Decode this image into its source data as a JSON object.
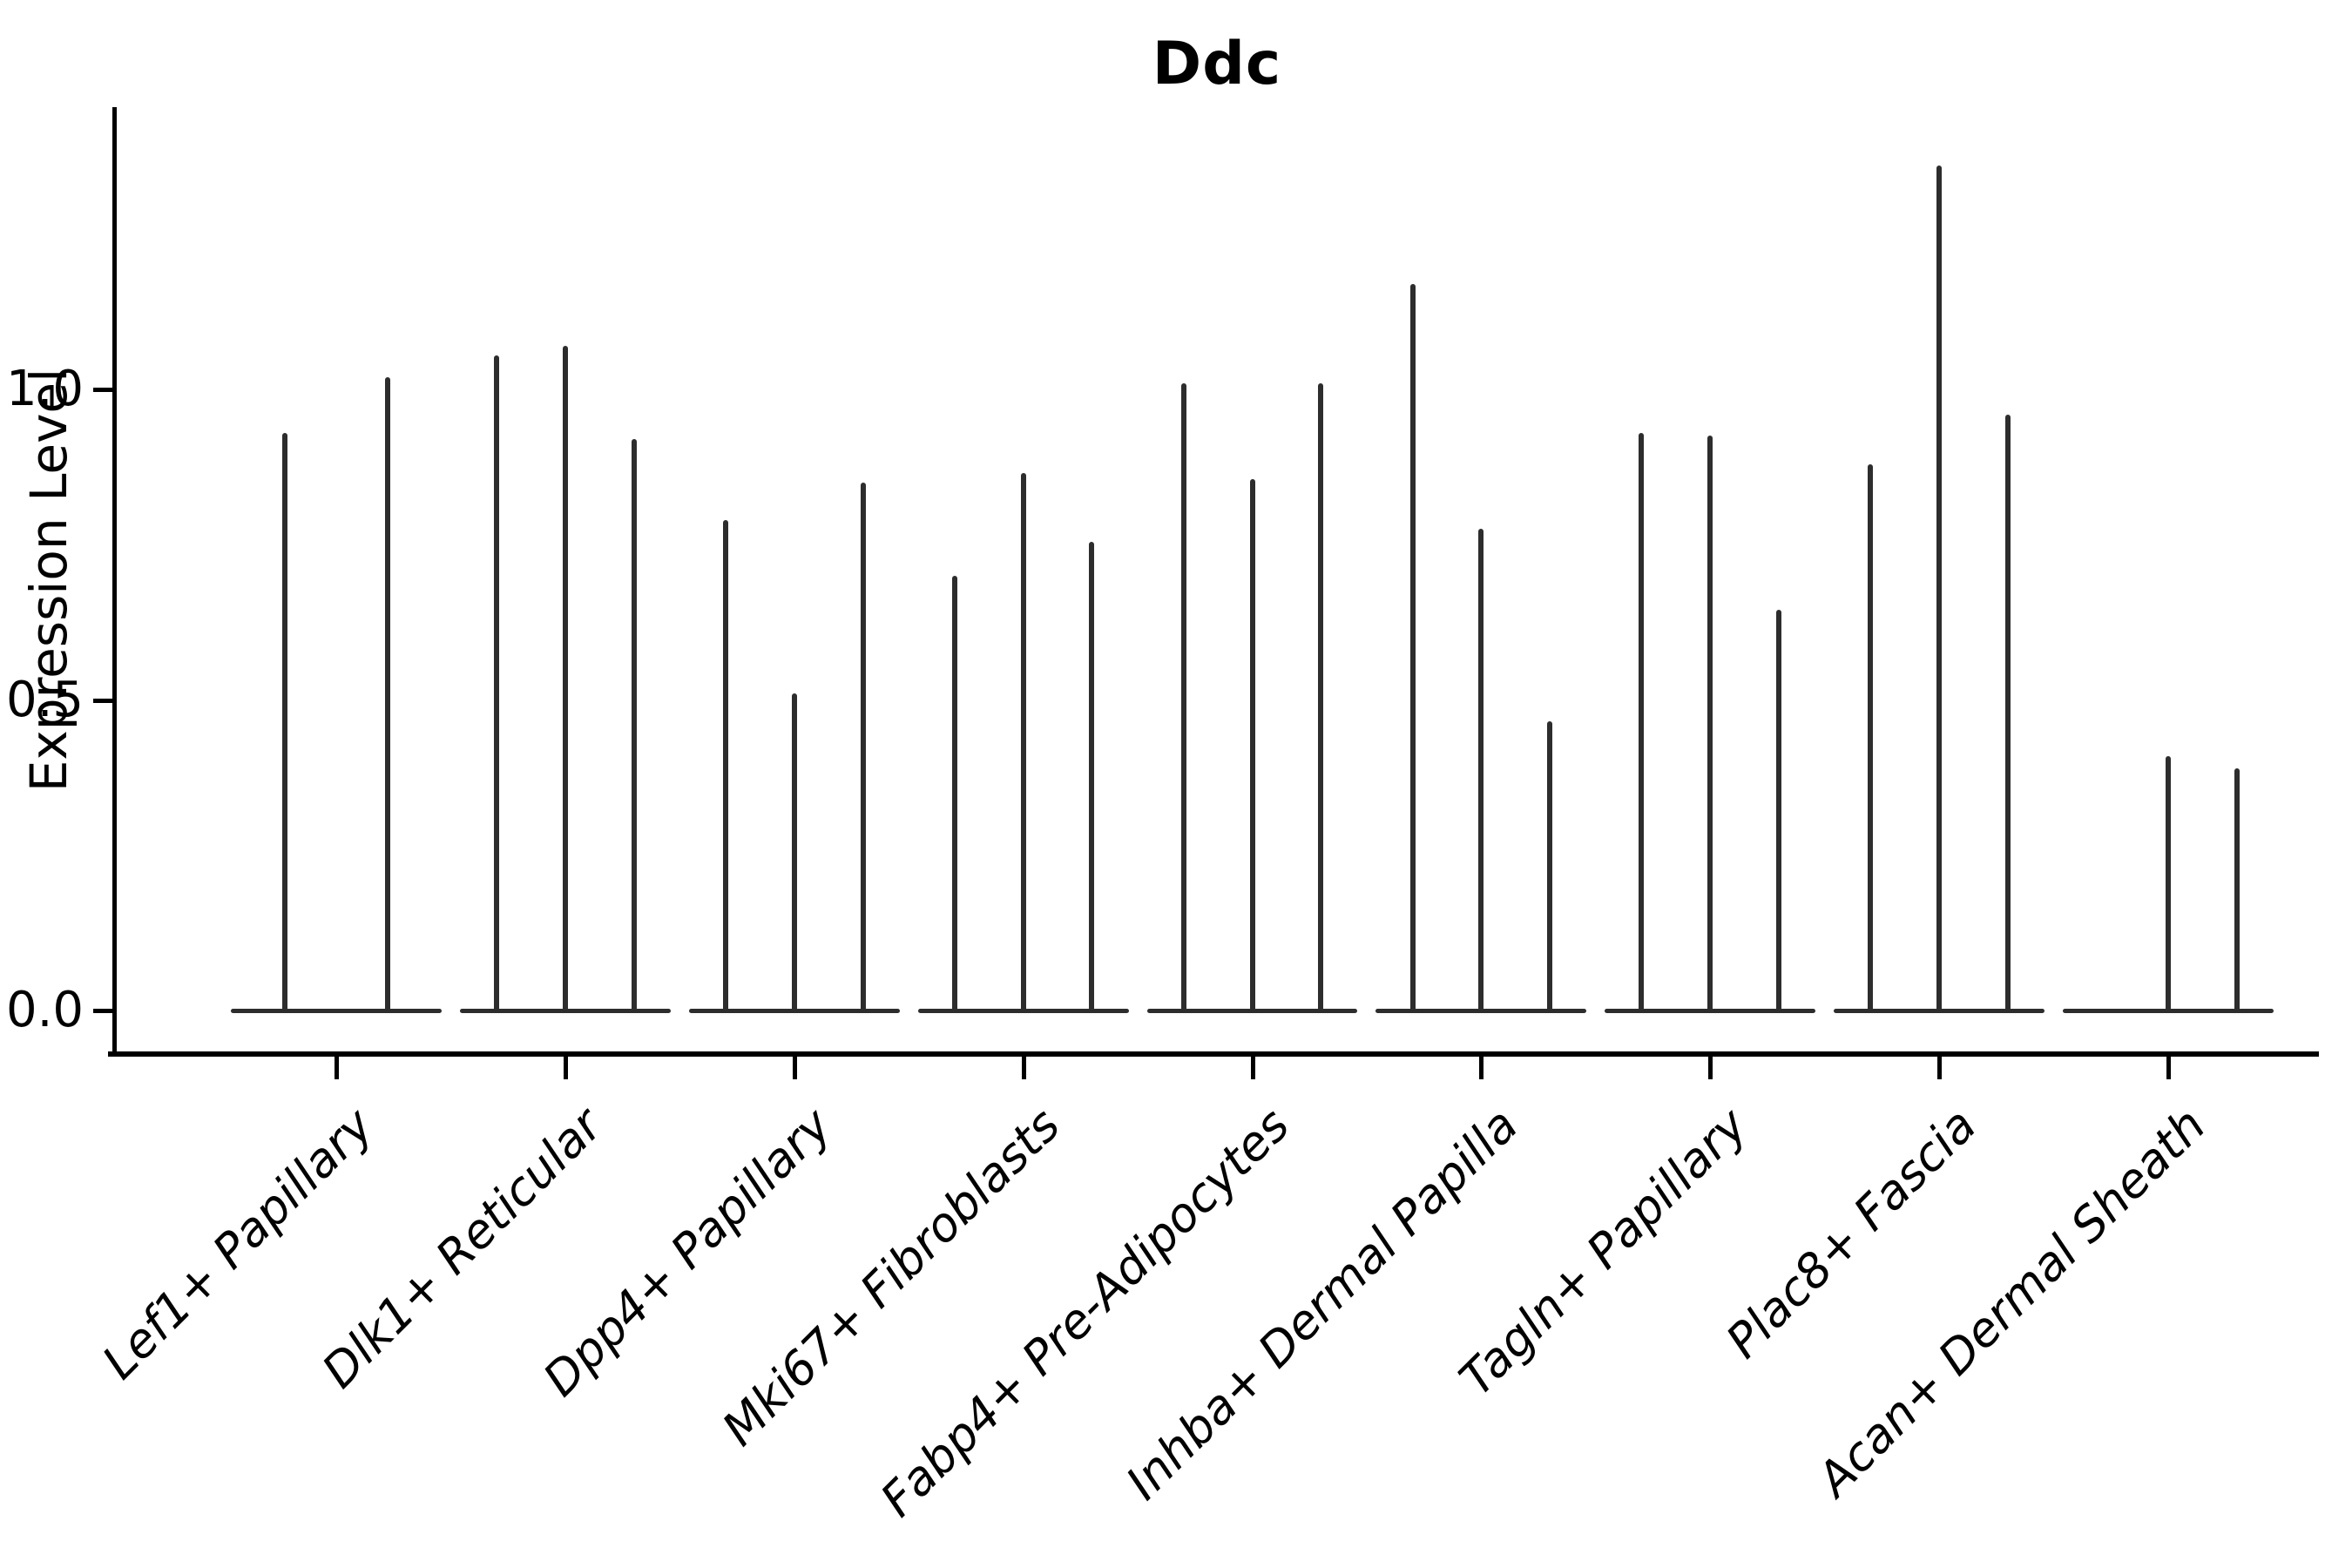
{
  "figure": {
    "title": "Ddc",
    "y_axis": {
      "label": "Expression Level",
      "tick_labels": [
        "0.0",
        "0.5",
        "1.0"
      ]
    },
    "x_axis": {
      "categories": [
        "Lef1+ Papillary",
        "Dlk1+ Reticular",
        "Dpp4+ Papillary",
        "Mki67+ Fibroblasts",
        "Fabp4+ Pre-Adipocytes",
        "Inhba+ Dermal Papilla",
        "Tagln+ Papillary",
        "Plac8+ Fascia",
        "Acan+ Dermal Sheath"
      ]
    }
  },
  "chart_data": {
    "type": "violin",
    "title": "Ddc",
    "xlabel": "",
    "ylabel": "Expression Level",
    "yticks": [
      0.0,
      0.5,
      1.0
    ],
    "ylim": [
      -0.07,
      1.45
    ],
    "grid": false,
    "legend": null,
    "style_note": "Seurat-style stacked violin: each category shows 2-3 extremely thin violins (near-zero density bulk at 0 with a thin tail spike up to the max expression value)",
    "categories": [
      "Lef1+ Papillary",
      "Dlk1+ Reticular",
      "Dpp4+ Papillary",
      "Mki67+ Fibroblasts",
      "Fabp4+ Pre-Adipocytes",
      "Inhba+ Dermal Papilla",
      "Tagln+ Papillary",
      "Plac8+ Fascia",
      "Acan+ Dermal Sheath"
    ],
    "groups": [
      {
        "category": "Lef1+ Papillary",
        "violins": [
          {
            "pos": -0.225,
            "peak": 0.93
          },
          {
            "pos": 0.225,
            "peak": 1.02
          }
        ]
      },
      {
        "category": "Dlk1+ Reticular",
        "violins": [
          {
            "pos": -0.3,
            "peak": 1.055
          },
          {
            "pos": 0.0,
            "peak": 1.07
          },
          {
            "pos": 0.3,
            "peak": 0.92
          }
        ]
      },
      {
        "category": "Dpp4+ Papillary",
        "violins": [
          {
            "pos": -0.3,
            "peak": 0.79
          },
          {
            "pos": 0.0,
            "peak": 0.51
          },
          {
            "pos": 0.3,
            "peak": 0.85
          }
        ]
      },
      {
        "category": "Mki67+ Fibroblasts",
        "violins": [
          {
            "pos": -0.3,
            "peak": 0.7
          },
          {
            "pos": 0.0,
            "peak": 0.865
          },
          {
            "pos": 0.3,
            "peak": 0.755
          }
        ]
      },
      {
        "category": "Fabp4+ Pre-Adipocytes",
        "violins": [
          {
            "pos": -0.3,
            "peak": 1.01
          },
          {
            "pos": 0.0,
            "peak": 0.855
          },
          {
            "pos": 0.3,
            "peak": 1.01
          }
        ]
      },
      {
        "category": "Inhba+ Dermal Papilla",
        "violins": [
          {
            "pos": -0.3,
            "peak": 1.17
          },
          {
            "pos": 0.0,
            "peak": 0.775
          },
          {
            "pos": 0.3,
            "peak": 0.465
          }
        ]
      },
      {
        "category": "Tagln+ Papillary",
        "violins": [
          {
            "pos": -0.3,
            "peak": 0.93
          },
          {
            "pos": 0.0,
            "peak": 0.925
          },
          {
            "pos": 0.3,
            "peak": 0.645
          }
        ]
      },
      {
        "category": "Plac8+ Fascia",
        "violins": [
          {
            "pos": -0.3,
            "peak": 0.88
          },
          {
            "pos": 0.0,
            "peak": 1.36
          },
          {
            "pos": 0.3,
            "peak": 0.96
          }
        ]
      },
      {
        "category": "Acan+ Dermal Sheath",
        "violins": [
          {
            "pos": 0.0,
            "peak": 0.41
          },
          {
            "pos": 0.3,
            "peak": 0.39
          }
        ]
      }
    ],
    "base_half_width": 0.46,
    "colors": {
      "violin": "#2d2d2d",
      "axis": "#000000",
      "text": "#000000",
      "background": "#ffffff"
    }
  }
}
